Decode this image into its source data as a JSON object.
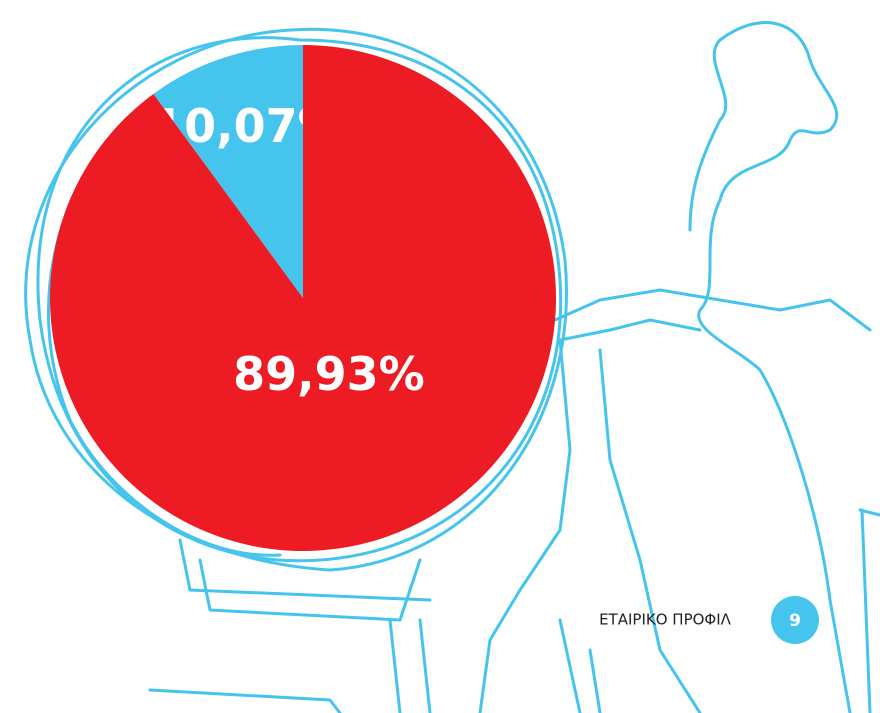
{
  "chart_data": {
    "type": "pie",
    "values": [
      10.07,
      89.93
    ],
    "value_labels": [
      "10,07%",
      "89,93%"
    ],
    "colors": [
      "#45c4ee",
      "#ed1c24"
    ]
  },
  "footer": {
    "section": "ΕΤΑΙΡΙΚΟ ΠΡΟΦΙΛ",
    "page": "9"
  }
}
